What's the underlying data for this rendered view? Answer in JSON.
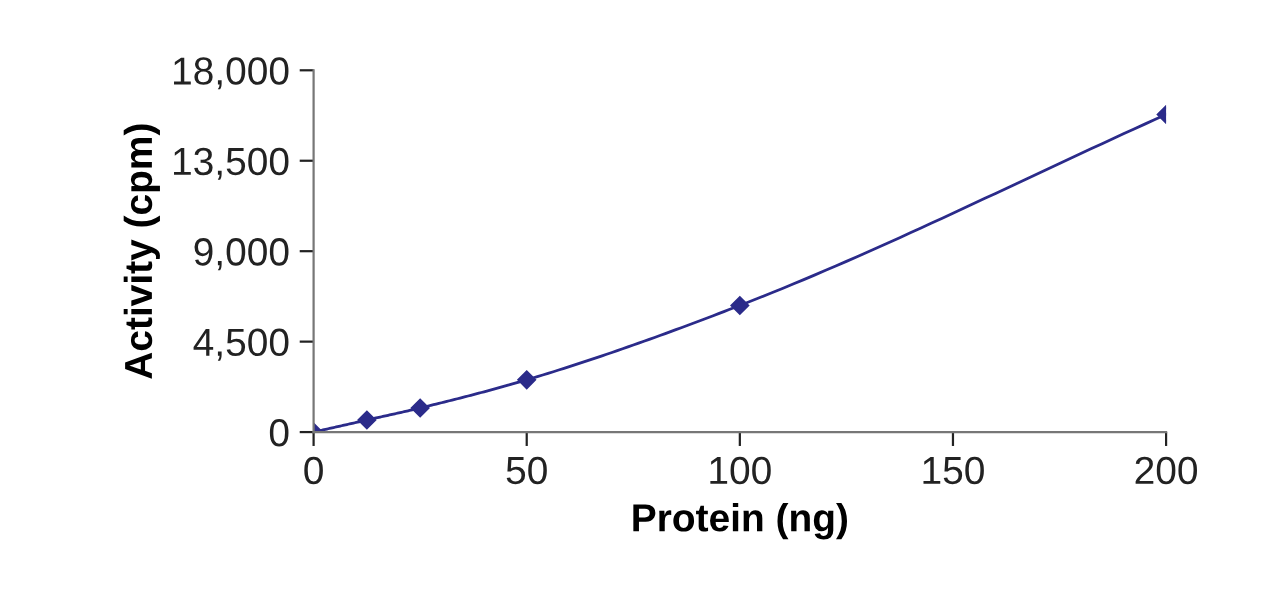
{
  "chart_data": {
    "type": "line",
    "xlabel": "Protein (ng)",
    "ylabel": "Activity (cpm)",
    "x": [
      0,
      12.5,
      25,
      50,
      100,
      200
    ],
    "series": [
      {
        "color": "#2b2b8a",
        "values": [
          0,
          600,
          1200,
          2600,
          6300,
          15800
        ]
      }
    ],
    "xlim": [
      0,
      200
    ],
    "xticks": [
      0,
      50,
      100,
      150,
      200
    ],
    "ylim": [
      0,
      18000
    ],
    "yticks": [
      {
        "value": 0,
        "label": "0"
      },
      {
        "value": 4500,
        "label": "4,500"
      },
      {
        "value": 9000,
        "label": "9,000"
      },
      {
        "value": 13500,
        "label": "13,500"
      },
      {
        "value": 18000,
        "label": "18,000"
      }
    ],
    "grid": false,
    "legend": false,
    "marker": "diamond",
    "line_style": "solid"
  }
}
